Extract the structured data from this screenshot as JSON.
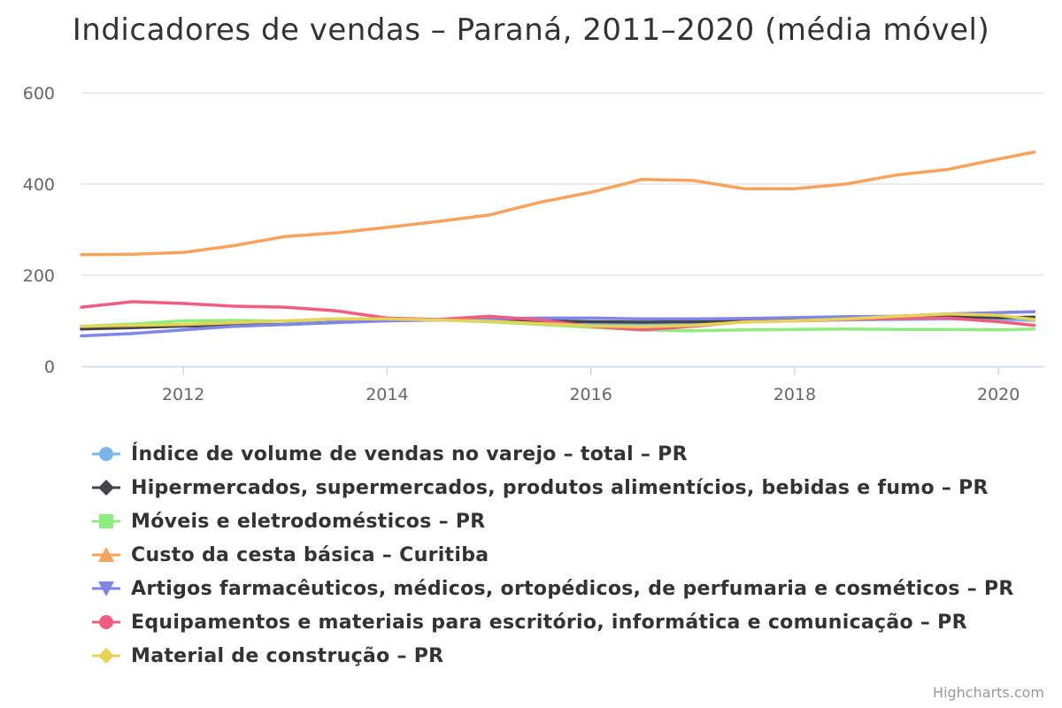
{
  "title": "Indicadores de vendas – Paraná, 2011–2020 (média móvel)",
  "credits": "Highcharts.com",
  "chart_data": {
    "type": "line",
    "title": "Indicadores de vendas – Paraná, 2011–2020 (média móvel)",
    "xlabel": "",
    "ylabel": "",
    "x": [
      2011.0,
      2011.5,
      2012.0,
      2012.5,
      2013.0,
      2013.5,
      2014.0,
      2014.5,
      2015.0,
      2015.5,
      2016.0,
      2016.5,
      2017.0,
      2017.5,
      2018.0,
      2018.5,
      2019.0,
      2019.5,
      2020.0,
      2020.35
    ],
    "xlim": [
      2011.0,
      2020.45
    ],
    "xticks": [
      2012,
      2014,
      2016,
      2018,
      2020
    ],
    "ylim": [
      0,
      600
    ],
    "yticks": [
      0,
      200,
      400,
      600
    ],
    "grid": true,
    "legend_position": "bottom",
    "series": [
      {
        "name": "Índice de volume de vendas no varejo – total – PR",
        "color": "#7cb5ec",
        "marker": "circle",
        "values": [
          84,
          86,
          88,
          90,
          92,
          96,
          100,
          102,
          100,
          97,
          94,
          94,
          96,
          98,
          100,
          102,
          103,
          104,
          103,
          101
        ]
      },
      {
        "name": "Hipermercados, supermercados, produtos alimentícios, bebidas e fumo – PR",
        "color": "#434348",
        "marker": "diamond",
        "values": [
          82,
          85,
          89,
          90,
          92,
          97,
          101,
          103,
          102,
          100,
          98,
          97,
          98,
          100,
          103,
          105,
          107,
          110,
          107,
          108
        ]
      },
      {
        "name": "Móveis e eletrodomésticos – PR",
        "color": "#90ed7d",
        "marker": "square",
        "values": [
          88,
          93,
          100,
          101,
          99,
          104,
          104,
          102,
          98,
          92,
          86,
          80,
          78,
          80,
          81,
          82,
          81,
          81,
          80,
          82
        ]
      },
      {
        "name": "Custo da cesta básica – Curitiba",
        "color": "#f7a35c",
        "marker": "triangle",
        "values": [
          245,
          246,
          250,
          265,
          285,
          293,
          305,
          318,
          332,
          360,
          382,
          410,
          408,
          390,
          390,
          400,
          420,
          432,
          455,
          470
        ]
      },
      {
        "name": "Artigos farmacêuticos, médicos, ortopédicos, de perfumaria e cosméticos – PR",
        "color": "#8085e9",
        "marker": "triangle-down",
        "values": [
          67,
          72,
          80,
          88,
          92,
          97,
          100,
          102,
          104,
          106,
          106,
          104,
          104,
          105,
          107,
          109,
          110,
          115,
          118,
          120
        ]
      },
      {
        "name": "Equipamentos e materiais para escritório, informática e comunicação – PR",
        "color": "#f15c80",
        "marker": "circle",
        "values": [
          130,
          142,
          138,
          132,
          130,
          122,
          106,
          103,
          110,
          102,
          88,
          80,
          88,
          98,
          100,
          103,
          105,
          106,
          98,
          90
        ]
      },
      {
        "name": "Material de construção – PR",
        "color": "#e4d354",
        "marker": "diamond",
        "values": [
          88,
          90,
          92,
          96,
          100,
          104,
          104,
          102,
          99,
          94,
          89,
          87,
          90,
          97,
          100,
          104,
          110,
          115,
          112,
          103
        ]
      }
    ]
  }
}
